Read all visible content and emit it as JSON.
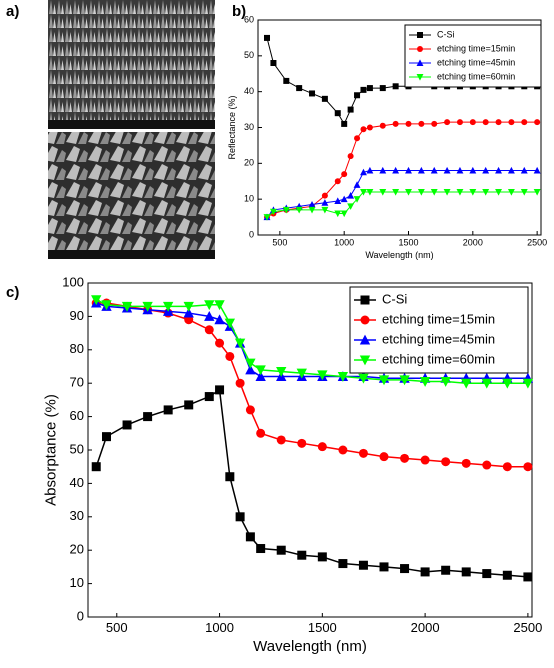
{
  "panel_labels": [
    "a)",
    "b)",
    "c)"
  ],
  "chart_data": [
    {
      "type": "line",
      "x_label": "Wavelength (nm)",
      "y_label": "Reflectance (%)",
      "x": [
        400,
        450,
        550,
        650,
        750,
        850,
        950,
        1000,
        1050,
        1100,
        1150,
        1200,
        1300,
        1400,
        1500,
        1600,
        1700,
        1800,
        1900,
        2000,
        2100,
        2200,
        2300,
        2400,
        2500
      ],
      "series": [
        {
          "name": "C-Si",
          "color": "#000000",
          "marker": "square",
          "values": [
            55,
            48,
            43,
            41,
            39.5,
            38,
            34,
            31,
            35,
            39,
            40.5,
            41,
            41,
            41.5,
            41.5,
            42,
            41.5,
            41.5,
            41.5,
            41.5,
            41.5,
            41.5,
            41.5,
            41.5,
            41.5
          ]
        },
        {
          "name": "etching time=15min",
          "color": "#ff0000",
          "marker": "circle",
          "values": [
            5,
            6,
            7,
            7.5,
            8,
            11,
            15,
            17,
            22,
            27,
            29.5,
            30,
            30.5,
            31,
            31,
            31,
            31,
            31.5,
            31.5,
            31.5,
            31.5,
            31.5,
            31.5,
            31.5,
            31.5
          ]
        },
        {
          "name": "etching time=45min",
          "color": "#0000ff",
          "marker": "triangle-up",
          "values": [
            5,
            7,
            7.5,
            8,
            8.5,
            9,
            9.5,
            10,
            11,
            14,
            17.5,
            18,
            18,
            18,
            18,
            18,
            18,
            18,
            18,
            18,
            18,
            18,
            18,
            18,
            18
          ]
        },
        {
          "name": "etching time=60min",
          "color": "#00ff00",
          "marker": "triangle-down",
          "values": [
            5,
            6.5,
            7,
            7,
            7,
            7,
            6,
            6,
            8,
            10,
            12,
            12,
            12,
            12,
            12,
            12,
            12,
            12,
            12,
            12,
            12,
            12,
            12,
            12,
            12
          ]
        }
      ],
      "xlim": [
        330,
        2530
      ],
      "xticks": [
        500,
        1000,
        1500,
        2000,
        2500
      ],
      "ylim": [
        0,
        60
      ],
      "yticks": [
        0,
        10,
        20,
        30,
        40,
        50,
        60
      ],
      "legend": "upper right"
    },
    {
      "type": "line",
      "x_label": "Wavelength (nm)",
      "y_label": "Absorptance (%)",
      "x": [
        400,
        450,
        550,
        650,
        750,
        850,
        950,
        1000,
        1050,
        1100,
        1150,
        1200,
        1300,
        1400,
        1500,
        1600,
        1700,
        1800,
        1900,
        2000,
        2100,
        2200,
        2300,
        2400,
        2500
      ],
      "series": [
        {
          "name": "C-Si",
          "color": "#000000",
          "marker": "square",
          "values": [
            45,
            54,
            57.5,
            60,
            62,
            63.5,
            66,
            68,
            42,
            30,
            24,
            20.5,
            20,
            18.5,
            18,
            16,
            15.5,
            15,
            14.5,
            13.5,
            14,
            13.5,
            13,
            12.5,
            12
          ]
        },
        {
          "name": "etching time=15min",
          "color": "#ff0000",
          "marker": "circle",
          "values": [
            94,
            94,
            93,
            92,
            91,
            89,
            86,
            82,
            78,
            70,
            62,
            55,
            53,
            52,
            51,
            50,
            49,
            48,
            47.5,
            47,
            46.5,
            46,
            45.5,
            45,
            45
          ]
        },
        {
          "name": "etching time=45min",
          "color": "#0000ff",
          "marker": "triangle-up",
          "values": [
            94,
            93,
            92.5,
            92,
            91.5,
            91,
            90,
            89,
            87,
            82,
            74,
            72,
            72,
            72,
            72,
            72,
            72,
            71.5,
            71.5,
            71.5,
            71.5,
            71.5,
            71.5,
            71.5,
            71.5
          ]
        },
        {
          "name": "etching time=60min",
          "color": "#00ff00",
          "marker": "triangle-down",
          "values": [
            95,
            93.5,
            93,
            93,
            93,
            93,
            93.5,
            93.5,
            88,
            82,
            76,
            74,
            73.5,
            73,
            72.5,
            72,
            71.5,
            71,
            71,
            70.5,
            70.5,
            70,
            70,
            70,
            70
          ]
        }
      ],
      "xlim": [
        360,
        2520
      ],
      "xticks": [
        500,
        1000,
        1500,
        2000,
        2500
      ],
      "ylim": [
        0,
        100
      ],
      "yticks": [
        0,
        10,
        20,
        30,
        40,
        50,
        60,
        70,
        80,
        90,
        100
      ],
      "legend": "upper right"
    }
  ]
}
